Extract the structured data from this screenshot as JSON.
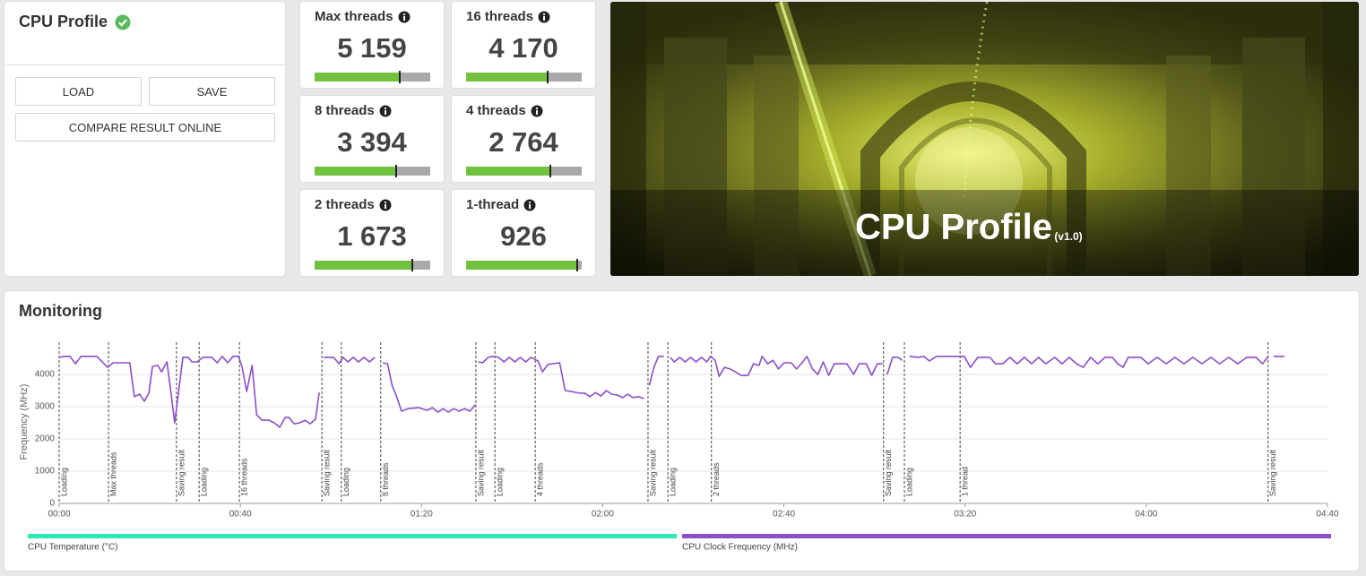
{
  "profile_panel": {
    "title": "CPU Profile",
    "buttons": [
      "LOAD",
      "SAVE",
      "COMPARE RESULT ONLINE"
    ]
  },
  "scores": [
    {
      "label": "Max threads",
      "score": "5 159"
    },
    {
      "label": "16 threads",
      "score": "4 170"
    },
    {
      "label": "8 threads",
      "score": "3 394"
    },
    {
      "label": "4 threads",
      "score": "2 764"
    },
    {
      "label": "2 threads",
      "score": "1 673"
    },
    {
      "label": "1-thread",
      "score": "926"
    }
  ],
  "banner": {
    "title": "CPU Profile",
    "version": "(v1.0)"
  },
  "chart_data": {
    "type": "line",
    "title": "Monitoring",
    "y_label": "Frequency (MHz)",
    "xlim": [
      0,
      280
    ],
    "xticks": [
      {
        "value": 0,
        "label": "00:00"
      },
      {
        "value": 40,
        "label": "00:40"
      },
      {
        "value": 80,
        "label": "01:20"
      },
      {
        "value": 120,
        "label": "02:00"
      },
      {
        "value": 160,
        "label": "02:40"
      },
      {
        "value": 200,
        "label": "03:20"
      },
      {
        "value": 240,
        "label": "04:00"
      },
      {
        "value": 280,
        "label": "04:40"
      }
    ],
    "ylim": [
      0,
      5000
    ],
    "yticks": [
      0,
      1000,
      2000,
      3000,
      4000
    ],
    "grid": true,
    "annotations": [
      {
        "x": 0,
        "label": "Loading"
      },
      {
        "x": 10.9,
        "label": "Max threads"
      },
      {
        "x": 25.9,
        "label": "Saving result"
      },
      {
        "x": 30.9,
        "label": "Loading"
      },
      {
        "x": 39.8,
        "label": "16 threads"
      },
      {
        "x": 58.0,
        "label": "Saving result"
      },
      {
        "x": 62.3,
        "label": "Loading"
      },
      {
        "x": 71.0,
        "label": "8 threads"
      },
      {
        "x": 92.0,
        "label": "Saving result"
      },
      {
        "x": 96.2,
        "label": "Loading"
      },
      {
        "x": 105.1,
        "label": "4 threads"
      },
      {
        "x": 130.0,
        "label": "Saving result"
      },
      {
        "x": 134.4,
        "label": "Loading"
      },
      {
        "x": 144.0,
        "label": "2 threads"
      },
      {
        "x": 182.0,
        "label": "Saving result"
      },
      {
        "x": 186.6,
        "label": "Loading"
      },
      {
        "x": 198.9,
        "label": "1 thread"
      },
      {
        "x": 266.9,
        "label": "Saving result"
      }
    ],
    "series": [
      {
        "name": "CPU Temperature (°C)",
        "color": "#2ee8b6",
        "x": [],
        "values": []
      },
      {
        "name": "CPU Clock Frequency (MHz)",
        "color": "#8b4fc9",
        "x": [
          0,
          1.2,
          2.4,
          3.6,
          4.8,
          8.3,
          10.7,
          11.9,
          15.6,
          16.6,
          17.8,
          18.8,
          19.8,
          20.6,
          21.8,
          22.6,
          23.8,
          24.6,
          25.5,
          26.3,
          27.3,
          28.5,
          29.3,
          30.5,
          31.7,
          33.7,
          34.9,
          36.0,
          37.2,
          38.4,
          39.6,
          40.4,
          41.4,
          42.6,
          43.6,
          44.8,
          46.3,
          47.5,
          48.7,
          49.9,
          50.7,
          51.9,
          53.1,
          54.3,
          55.4,
          56.6,
          57.4,
          null,
          58.4,
          60.6,
          61.8,
          62.6,
          63.8,
          64.9,
          66.1,
          67.3,
          68.5,
          69.7,
          null,
          71.5,
          72.5,
          73.5,
          74.5,
          75.6,
          77.0,
          79.4,
          81.2,
          82.4,
          83.6,
          84.8,
          85.9,
          87.1,
          88.3,
          89.5,
          90.7,
          91.9,
          null,
          92.5,
          93.5,
          94.7,
          95.8,
          97.0,
          98.2,
          99.4,
          100.6,
          101.8,
          103.0,
          104.2,
          105.7,
          106.7,
          107.9,
          110.5,
          111.7,
          113.1,
          114.9,
          116.0,
          117.2,
          118.4,
          119.6,
          120.8,
          122.0,
          123.2,
          124.4,
          125.5,
          126.7,
          127.9,
          129.1,
          null,
          130.3,
          131.3,
          132.3,
          133.5,
          null,
          134.9,
          135.8,
          137.0,
          138.2,
          139.4,
          140.6,
          141.8,
          143.0,
          143.8,
          144.8,
          145.7,
          146.9,
          148.1,
          149.3,
          150.5,
          152.1,
          153.3,
          154.5,
          155.2,
          156.4,
          157.6,
          158.8,
          160.0,
          161.6,
          162.8,
          164.0,
          165.1,
          166.3,
          167.5,
          168.7,
          169.9,
          171.1,
          173.9,
          175.4,
          176.6,
          178.2,
          179.4,
          180.6,
          181.8,
          null,
          182.8,
          184.0,
          185.3,
          186.1,
          null,
          187.7,
          189.7,
          190.9,
          192.1,
          193.7,
          198.4,
          199.8,
          201.2,
          202.8,
          205.5,
          206.7,
          208.3,
          209.9,
          211.5,
          213.1,
          214.7,
          216.2,
          217.8,
          219.8,
          221.4,
          223.0,
          224.6,
          226.1,
          227.7,
          229.3,
          230.9,
          232.5,
          233.7,
          234.9,
          236.0,
          238.8,
          240.4,
          242.4,
          244.4,
          246.3,
          248.3,
          250.3,
          252.3,
          254.3,
          256.2,
          258.2,
          260.2,
          262.2,
          264.2,
          265.7,
          266.9,
          null,
          268.1,
          270.5
        ],
        "values": [
          4530,
          4560,
          4560,
          4330,
          4560,
          4560,
          4220,
          4360,
          4360,
          3310,
          3390,
          3170,
          3420,
          4250,
          4280,
          4080,
          4390,
          3530,
          2500,
          3390,
          4530,
          4530,
          4390,
          4390,
          4530,
          4530,
          4360,
          4560,
          4360,
          4560,
          4560,
          4220,
          3470,
          4280,
          2750,
          2580,
          2580,
          2500,
          2360,
          2670,
          2670,
          2470,
          2500,
          2580,
          2470,
          2610,
          3440,
          null,
          4530,
          4530,
          4330,
          4530,
          4390,
          4530,
          4390,
          4530,
          4390,
          4530,
          null,
          4360,
          4330,
          3670,
          3310,
          2860,
          2940,
          2970,
          2890,
          2970,
          2830,
          2940,
          2830,
          2940,
          2860,
          2940,
          2860,
          3060,
          null,
          4390,
          4360,
          4530,
          4560,
          4530,
          4390,
          4530,
          4390,
          4530,
          4390,
          4530,
          4420,
          4080,
          4310,
          4360,
          3500,
          3470,
          3420,
          3420,
          3310,
          3440,
          3330,
          3500,
          3390,
          3360,
          3280,
          3390,
          3280,
          3310,
          3250,
          null,
          3670,
          4220,
          4560,
          4560,
          null,
          4530,
          4390,
          4530,
          4390,
          4530,
          4390,
          4530,
          4390,
          4560,
          4440,
          3940,
          4220,
          4170,
          4080,
          3970,
          3970,
          4330,
          4280,
          4560,
          4330,
          4440,
          4170,
          4360,
          4360,
          4170,
          4360,
          4560,
          4170,
          4000,
          4390,
          3970,
          4330,
          4330,
          4000,
          4330,
          4330,
          3970,
          4330,
          4330,
          null,
          4000,
          4530,
          4530,
          4440,
          null,
          4560,
          4530,
          4560,
          4420,
          4560,
          4560,
          4560,
          4220,
          4530,
          4530,
          4330,
          4330,
          4530,
          4330,
          4530,
          4330,
          4530,
          4330,
          4530,
          4330,
          4530,
          4330,
          4220,
          4530,
          4330,
          4530,
          4530,
          4330,
          4220,
          4530,
          4530,
          4330,
          4530,
          4330,
          4530,
          4330,
          4530,
          4330,
          4530,
          4330,
          4530,
          4330,
          4530,
          4530,
          4330,
          4560,
          null,
          4560,
          4560
        ]
      }
    ]
  }
}
